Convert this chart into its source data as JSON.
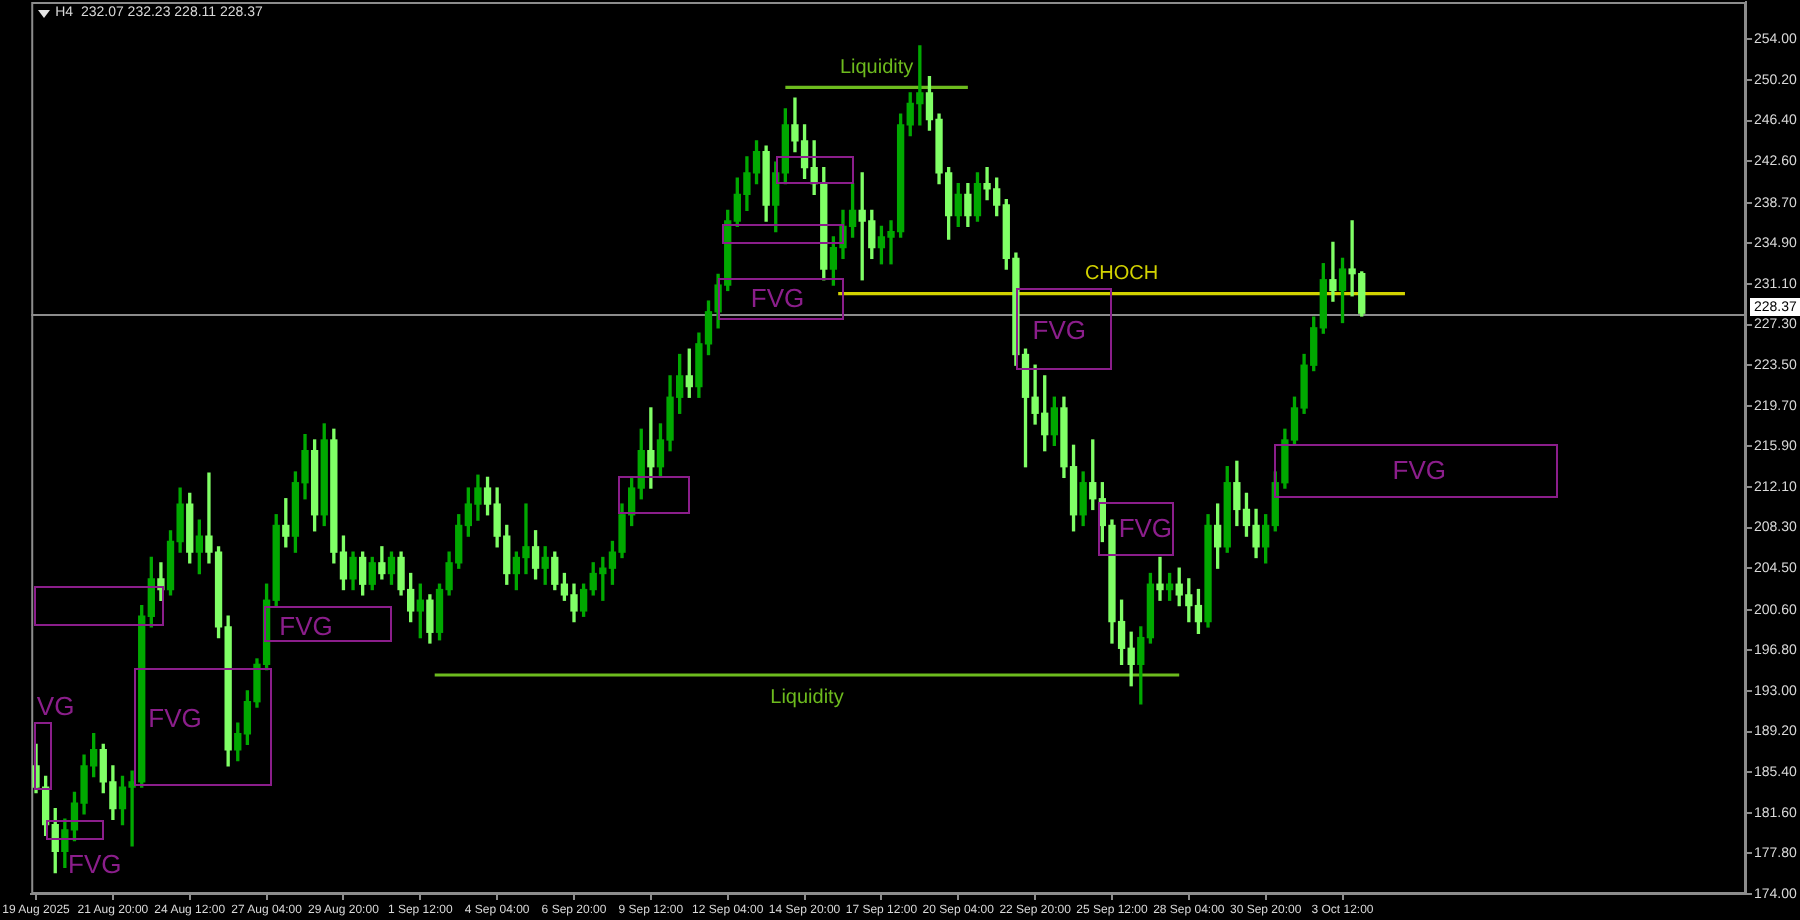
{
  "chart_data": {
    "type": "candlestick",
    "title": "H4  232.07 232.23 228.11 228.37",
    "x": [
      "2025-08-19T04:00",
      "2025-08-19T12:00",
      "2025-08-19T20:00",
      "2025-08-20T04:00",
      "2025-08-20T12:00",
      "2025-08-20T20:00",
      "2025-08-21T04:00",
      "2025-08-21T12:00",
      "2025-08-21T20:00",
      "2025-08-22T04:00",
      "2025-08-22T12:00",
      "2025-08-22T20:00",
      "2025-08-23T04:00",
      "2025-08-23T12:00",
      "2025-08-23T20:00",
      "2025-08-24T04:00",
      "2025-08-24T12:00",
      "2025-08-24T20:00",
      "2025-08-25T04:00",
      "2025-08-25T12:00",
      "2025-08-25T20:00",
      "2025-08-26T04:00",
      "2025-08-26T12:00",
      "2025-08-26T20:00",
      "2025-08-27T04:00",
      "2025-08-27T12:00",
      "2025-08-27T20:00",
      "2025-08-28T04:00",
      "2025-08-28T12:00",
      "2025-08-28T20:00",
      "2025-08-29T04:00",
      "2025-08-29T12:00",
      "2025-08-29T20:00",
      "2025-08-30T04:00",
      "2025-08-30T12:00",
      "2025-08-30T20:00",
      "2025-08-31T04:00",
      "2025-08-31T12:00",
      "2025-08-31T20:00",
      "2025-09-01T04:00",
      "2025-09-01T12:00",
      "2025-09-01T20:00",
      "2025-09-02T04:00",
      "2025-09-02T12:00",
      "2025-09-02T20:00",
      "2025-09-03T04:00",
      "2025-09-03T12:00",
      "2025-09-03T20:00",
      "2025-09-04T04:00",
      "2025-09-04T12:00",
      "2025-09-04T20:00",
      "2025-09-05T04:00",
      "2025-09-05T12:00",
      "2025-09-05T20:00",
      "2025-09-06T04:00",
      "2025-09-06T12:00",
      "2025-09-06T20:00",
      "2025-09-07T04:00",
      "2025-09-07T12:00",
      "2025-09-07T20:00",
      "2025-09-08T04:00",
      "2025-09-08T12:00",
      "2025-09-08T20:00",
      "2025-09-09T04:00",
      "2025-09-09T12:00",
      "2025-09-09T20:00",
      "2025-09-10T04:00",
      "2025-09-10T12:00",
      "2025-09-10T20:00",
      "2025-09-11T04:00",
      "2025-09-11T12:00",
      "2025-09-11T20:00",
      "2025-09-12T04:00",
      "2025-09-12T12:00",
      "2025-09-12T20:00",
      "2025-09-13T04:00",
      "2025-09-13T12:00",
      "2025-09-13T20:00",
      "2025-09-14T04:00",
      "2025-09-14T12:00",
      "2025-09-14T20:00",
      "2025-09-15T04:00",
      "2025-09-15T12:00",
      "2025-09-15T20:00",
      "2025-09-16T04:00",
      "2025-09-16T12:00",
      "2025-09-16T20:00",
      "2025-09-17T04:00",
      "2025-09-17T12:00",
      "2025-09-17T20:00",
      "2025-09-18T04:00",
      "2025-09-18T12:00",
      "2025-09-18T20:00",
      "2025-09-19T04:00",
      "2025-09-19T12:00",
      "2025-09-19T20:00",
      "2025-09-20T04:00",
      "2025-09-20T12:00",
      "2025-09-20T20:00",
      "2025-09-21T04:00",
      "2025-09-21T12:00",
      "2025-09-21T20:00",
      "2025-09-22T04:00",
      "2025-09-22T12:00",
      "2025-09-22T20:00",
      "2025-09-23T04:00",
      "2025-09-23T12:00",
      "2025-09-23T20:00",
      "2025-09-24T04:00",
      "2025-09-24T12:00",
      "2025-09-24T20:00",
      "2025-09-25T04:00",
      "2025-09-25T12:00",
      "2025-09-25T20:00",
      "2025-09-26T04:00",
      "2025-09-26T12:00",
      "2025-09-26T20:00",
      "2025-09-27T04:00",
      "2025-09-27T12:00",
      "2025-09-27T20:00",
      "2025-09-28T04:00",
      "2025-09-28T12:00",
      "2025-09-28T20:00",
      "2025-09-29T04:00",
      "2025-09-29T12:00",
      "2025-09-29T20:00",
      "2025-09-30T04:00",
      "2025-09-30T12:00",
      "2025-09-30T20:00",
      "2025-10-01T04:00",
      "2025-10-01T12:00",
      "2025-10-01T20:00",
      "2025-10-02T04:00",
      "2025-10-02T12:00",
      "2025-10-02T20:00",
      "2025-10-03T04:00",
      "2025-10-03T12:00",
      "2025-10-03T20:00",
      "2025-10-04T04:00"
    ],
    "ohlc": [
      [
        186,
        188,
        183.5,
        184
      ],
      [
        184,
        185,
        179.5,
        180.5
      ],
      [
        180.5,
        182,
        176,
        178
      ],
      [
        178,
        181,
        176.5,
        180
      ],
      [
        180,
        183.5,
        179,
        182.5
      ],
      [
        182.5,
        187,
        181.5,
        186
      ],
      [
        186,
        189,
        185,
        187.5
      ],
      [
        187.5,
        188,
        183.5,
        184.5
      ],
      [
        184.5,
        186,
        181,
        182
      ],
      [
        182,
        185,
        180.5,
        184
      ],
      [
        184,
        185.5,
        178.5,
        184.5
      ],
      [
        184.5,
        201,
        184,
        200
      ],
      [
        200,
        205.5,
        199,
        203.5
      ],
      [
        203.5,
        205,
        201.5,
        202.5
      ],
      [
        202.5,
        208,
        202,
        207
      ],
      [
        207,
        212,
        206,
        210.5
      ],
      [
        210.5,
        211.5,
        205,
        206
      ],
      [
        206,
        209,
        204,
        207.5
      ],
      [
        207.5,
        213.4,
        205,
        206
      ],
      [
        206,
        206.5,
        198,
        199
      ],
      [
        199,
        200,
        186,
        187.5
      ],
      [
        187.5,
        190,
        186.5,
        189
      ],
      [
        189,
        193,
        188,
        192
      ],
      [
        192,
        196,
        191.5,
        195.5
      ],
      [
        195.5,
        203,
        195,
        201.5
      ],
      [
        201.5,
        209.5,
        201,
        208.5
      ],
      [
        208.5,
        211,
        206.5,
        207.5
      ],
      [
        207.5,
        213.5,
        206,
        212.5
      ],
      [
        212.5,
        217,
        211,
        215.5
      ],
      [
        215.5,
        216.5,
        208,
        209.5
      ],
      [
        209.5,
        218,
        208.5,
        216.5
      ],
      [
        216.5,
        217.5,
        205,
        206
      ],
      [
        206,
        207.5,
        202.5,
        203.5
      ],
      [
        203.5,
        206,
        202.5,
        205.5
      ],
      [
        205.5,
        206,
        202,
        203
      ],
      [
        203,
        205.5,
        202.5,
        205
      ],
      [
        205,
        206.5,
        203.5,
        204
      ],
      [
        204,
        206,
        203,
        205.5
      ],
      [
        205.5,
        206,
        202,
        202.5
      ],
      [
        202.5,
        204,
        199.5,
        200.5
      ],
      [
        200.5,
        203,
        198,
        201.5
      ],
      [
        201.5,
        202,
        197.5,
        198.5
      ],
      [
        198.5,
        203,
        197.8,
        202.5
      ],
      [
        202.5,
        206,
        202,
        205
      ],
      [
        205,
        209.5,
        204.5,
        208.5
      ],
      [
        208.5,
        212,
        207.5,
        210.5
      ],
      [
        210.5,
        213.2,
        209,
        212
      ],
      [
        212,
        213,
        209.5,
        210.5
      ],
      [
        210.5,
        212,
        206.5,
        207.5
      ],
      [
        207.5,
        208.5,
        203,
        204
      ],
      [
        204,
        206,
        202.5,
        205.5
      ],
      [
        205.5,
        210.5,
        204,
        206.5
      ],
      [
        206.5,
        208,
        203.5,
        204.5
      ],
      [
        204.5,
        206.5,
        203,
        205.5
      ],
      [
        205.5,
        206,
        202.5,
        203
      ],
      [
        203,
        204,
        201.5,
        202
      ],
      [
        202,
        203,
        199.5,
        200.5
      ],
      [
        200.5,
        203,
        200,
        202.5
      ],
      [
        202.5,
        205,
        202,
        204
      ],
      [
        204,
        205.5,
        201.5,
        204.5
      ],
      [
        204.5,
        207,
        203,
        206
      ],
      [
        206,
        210.5,
        205.5,
        209.5
      ],
      [
        209.5,
        213,
        208.5,
        212
      ],
      [
        212,
        217.5,
        211,
        215.5
      ],
      [
        215.5,
        219.5,
        212,
        214
      ],
      [
        214,
        218,
        213,
        216.5
      ],
      [
        216.5,
        222.5,
        215.5,
        220.5
      ],
      [
        220.5,
        224.5,
        219,
        222.5
      ],
      [
        222.5,
        225,
        220.5,
        221.5
      ],
      [
        221.5,
        226.5,
        220.5,
        225.5
      ],
      [
        225.5,
        229.5,
        224.5,
        228.5
      ],
      [
        228.5,
        232,
        227,
        231
      ],
      [
        231,
        238,
        230.5,
        237
      ],
      [
        237,
        241,
        236.5,
        239.5
      ],
      [
        239.5,
        243,
        238,
        241.5
      ],
      [
        241.5,
        244.5,
        240.5,
        243.5
      ],
      [
        243.5,
        244,
        237,
        238.5
      ],
      [
        238.5,
        242.5,
        236,
        241.5
      ],
      [
        241.5,
        247.5,
        240.5,
        246
      ],
      [
        246,
        248.5,
        243.5,
        244.5
      ],
      [
        244.5,
        246,
        241,
        242
      ],
      [
        242,
        244.5,
        239.5,
        240.5
      ],
      [
        240.5,
        242,
        231.5,
        232.5
      ],
      [
        232.5,
        235.5,
        231,
        234.5
      ],
      [
        234.5,
        238,
        233.5,
        236.5
      ],
      [
        236.5,
        240.5,
        235.5,
        238
      ],
      [
        238,
        241.5,
        231.5,
        237
      ],
      [
        237,
        238,
        233.5,
        234.5
      ],
      [
        234.5,
        236.5,
        233,
        235.5
      ],
      [
        235.5,
        237,
        233,
        236
      ],
      [
        236,
        247,
        235.5,
        246
      ],
      [
        246,
        249,
        245,
        248
      ],
      [
        248,
        253.4,
        246,
        249
      ],
      [
        249,
        250.5,
        245.5,
        246.5
      ],
      [
        246.5,
        247,
        240.5,
        241.5
      ],
      [
        241.5,
        242,
        235.3,
        237.5
      ],
      [
        237.5,
        240.5,
        236.5,
        239.5
      ],
      [
        239.5,
        240.5,
        236.5,
        237.5
      ],
      [
        237.5,
        241.5,
        237,
        240.5
      ],
      [
        240.5,
        242,
        239,
        240
      ],
      [
        240,
        241,
        237.5,
        238.5
      ],
      [
        238.5,
        239,
        232.5,
        233.5
      ],
      [
        233.5,
        234,
        223.5,
        224.5
      ],
      [
        224.5,
        225,
        214,
        220.5
      ],
      [
        220.5,
        223.5,
        218,
        219
      ],
      [
        219,
        222.5,
        215.5,
        217
      ],
      [
        217,
        220.5,
        216,
        219.5
      ],
      [
        219.5,
        220.5,
        213,
        214
      ],
      [
        214,
        216,
        208,
        209.5
      ],
      [
        209.5,
        213.5,
        208.5,
        212.5
      ],
      [
        212.5,
        216.5,
        210,
        211
      ],
      [
        211,
        212.5,
        207,
        208.5
      ],
      [
        208.5,
        209,
        197.5,
        199.5
      ],
      [
        199.5,
        201.5,
        195.5,
        197
      ],
      [
        197,
        198.5,
        193.5,
        195.5
      ],
      [
        195.5,
        199,
        191.8,
        198
      ],
      [
        198,
        204,
        197.5,
        203
      ],
      [
        203,
        205.5,
        201.5,
        202.5
      ],
      [
        202.5,
        204,
        201.5,
        203
      ],
      [
        203,
        204.5,
        201,
        202
      ],
      [
        202,
        203.5,
        199.5,
        201
      ],
      [
        201,
        202.5,
        198.4,
        199.5
      ],
      [
        199.5,
        209.5,
        199,
        208.5
      ],
      [
        208.5,
        210.5,
        204.5,
        206.5
      ],
      [
        206.5,
        214,
        206,
        212.5
      ],
      [
        212.5,
        214.5,
        208.5,
        210
      ],
      [
        210,
        211.5,
        207.5,
        208.5
      ],
      [
        208.5,
        210,
        205.5,
        206.5
      ],
      [
        206.5,
        209.5,
        205,
        208.5
      ],
      [
        208.5,
        213.5,
        208,
        212.5
      ],
      [
        212.5,
        217.5,
        212,
        216.5
      ],
      [
        216.5,
        220.5,
        216,
        219.5
      ],
      [
        219.5,
        224.5,
        219,
        223.5
      ],
      [
        223.5,
        228,
        223,
        227
      ],
      [
        227,
        233,
        226.5,
        231.5
      ],
      [
        231.5,
        235,
        229.5,
        230.5
      ],
      [
        230.5,
        233.5,
        227.5,
        232.5
      ],
      [
        232.5,
        237,
        230,
        232.07
      ],
      [
        232.07,
        232.23,
        228.11,
        228.37
      ]
    ],
    "colors": [
      "#80ff66",
      "#80ff66",
      "#80ff66",
      "#00a800",
      "#00a800",
      "#00a800",
      "#00a800",
      "#80ff66",
      "#80ff66",
      "#00a800",
      "#00a800",
      "#00a800",
      "#00a800",
      "#80ff66",
      "#00a800",
      "#00a800",
      "#80ff66",
      "#00a800",
      "#80ff66",
      "#80ff66",
      "#80ff66",
      "#00a800",
      "#00a800",
      "#00a800",
      "#00a800",
      "#00a800",
      "#80ff66",
      "#00a800",
      "#00a800",
      "#80ff66",
      "#00a800",
      "#80ff66",
      "#80ff66",
      "#00a800",
      "#80ff66",
      "#00a800",
      "#80ff66",
      "#00a800",
      "#80ff66",
      "#80ff66",
      "#00a800",
      "#80ff66",
      "#00a800",
      "#00a800",
      "#00a800",
      "#00a800",
      "#00a800",
      "#80ff66",
      "#80ff66",
      "#80ff66",
      "#00a800",
      "#00a800",
      "#80ff66",
      "#00a800",
      "#80ff66",
      "#80ff66",
      "#80ff66",
      "#00a800",
      "#00a800",
      "#00a800",
      "#00a800",
      "#00a800",
      "#00a800",
      "#00a800",
      "#80ff66",
      "#00a800",
      "#00a800",
      "#00a800",
      "#80ff66",
      "#00a800",
      "#00a800",
      "#00a800",
      "#00a800",
      "#00a800",
      "#00a800",
      "#00a800",
      "#80ff66",
      "#00a800",
      "#00a800",
      "#80ff66",
      "#80ff66",
      "#80ff66",
      "#80ff66",
      "#00a800",
      "#00a800",
      "#00a800",
      "#80ff66",
      "#80ff66",
      "#00a800",
      "#00a800",
      "#00a800",
      "#00a800",
      "#00a800",
      "#80ff66",
      "#80ff66",
      "#80ff66",
      "#00a800",
      "#80ff66",
      "#00a800",
      "#80ff66",
      "#80ff66",
      "#80ff66",
      "#80ff66",
      "#80ff66",
      "#80ff66",
      "#80ff66",
      "#00a800",
      "#80ff66",
      "#80ff66",
      "#00a800",
      "#80ff66",
      "#80ff66",
      "#80ff66",
      "#80ff66",
      "#80ff66",
      "#00a800",
      "#00a800",
      "#80ff66",
      "#00a800",
      "#80ff66",
      "#80ff66",
      "#80ff66",
      "#00a800",
      "#80ff66",
      "#00a800",
      "#80ff66",
      "#80ff66",
      "#80ff66",
      "#00a800",
      "#00a800",
      "#00a800",
      "#00a800",
      "#00a800",
      "#00a800",
      "#00a800",
      "#80ff66",
      "#00a800",
      "#80ff66",
      "#80ff66"
    ],
    "series": [
      {
        "type": "line",
        "name": "Liquidity",
        "color": "#6dbb1e",
        "x": [
          "2025-09-14T04:00",
          "2025-09-20T12:00"
        ],
        "values": [
          249.5,
          249.5
        ]
      },
      {
        "type": "line",
        "name": "Liquidity",
        "color": "#6dbb1e",
        "x": [
          "2025-09-02T00:00",
          "2025-09-27T20:00"
        ],
        "values": [
          194.5,
          194.5
        ]
      },
      {
        "type": "line",
        "name": "CHOCH",
        "color": "#d2d200",
        "x": [
          "2025-09-16T00:00",
          "2025-10-05T16:00"
        ],
        "values": [
          230.2,
          230.2
        ]
      }
    ],
    "annotations": [
      "VG",
      "FVG",
      "FVG",
      "FVG",
      "FVG",
      "FVG",
      "FVG",
      "FVG"
    ],
    "ref_lines": [
      {
        "axis": "y",
        "value": 228.37,
        "label": "228.37",
        "color": "#8c8c8c"
      }
    ],
    "xlim": [
      "2025-08-19T00:00",
      "2025-10-17T12:00"
    ],
    "xticks": [
      {
        "value": "2025-08-19T04:00",
        "label": "19 Aug 2025"
      },
      {
        "value": "2025-08-21T20:00",
        "label": "21 Aug 20:00"
      },
      {
        "value": "2025-08-24T12:00",
        "label": "24 Aug 12:00"
      },
      {
        "value": "2025-08-27T04:00",
        "label": "27 Aug 04:00"
      },
      {
        "value": "2025-08-29T20:00",
        "label": "29 Aug 20:00"
      },
      {
        "value": "2025-09-01T12:00",
        "label": "1 Sep 12:00"
      },
      {
        "value": "2025-09-04T04:00",
        "label": "4 Sep 04:00"
      },
      {
        "value": "2025-09-06T20:00",
        "label": "6 Sep 20:00"
      },
      {
        "value": "2025-09-09T12:00",
        "label": "9 Sep 12:00"
      },
      {
        "value": "2025-09-12T04:00",
        "label": "12 Sep 04:00"
      },
      {
        "value": "2025-09-14T20:00",
        "label": "14 Sep 20:00"
      },
      {
        "value": "2025-09-17T12:00",
        "label": "17 Sep 12:00"
      },
      {
        "value": "2025-09-20T04:00",
        "label": "20 Sep 04:00"
      },
      {
        "value": "2025-09-22T20:00",
        "label": "22 Sep 20:00"
      },
      {
        "value": "2025-09-25T12:00",
        "label": "25 Sep 12:00"
      },
      {
        "value": "2025-09-28T04:00",
        "label": "28 Sep 04:00"
      },
      {
        "value": "2025-09-30T20:00",
        "label": "30 Sep 20:00"
      },
      {
        "value": "2025-10-03T12:00",
        "label": "3 Oct 12:00"
      }
    ],
    "ylim": [
      174,
      257.5
    ],
    "yticks": [
      {
        "value": 254,
        "label": "254.00"
      },
      {
        "value": 250.2,
        "label": "250.20"
      },
      {
        "value": 246.4,
        "label": "246.40"
      },
      {
        "value": 242.6,
        "label": "242.60"
      },
      {
        "value": 238.7,
        "label": "238.70"
      },
      {
        "value": 234.9,
        "label": "234.90"
      },
      {
        "value": 231.1,
        "label": "231.10"
      },
      {
        "value": 227.3,
        "label": "227.30"
      },
      {
        "value": 223.5,
        "label": "223.50"
      },
      {
        "value": 219.7,
        "label": "219.70"
      },
      {
        "value": 215.9,
        "label": "215.90"
      },
      {
        "value": 212.1,
        "label": "212.10"
      },
      {
        "value": 208.3,
        "label": "208.30"
      },
      {
        "value": 204.5,
        "label": "204.50"
      },
      {
        "value": 200.6,
        "label": "200.60"
      },
      {
        "value": 196.8,
        "label": "196.80"
      },
      {
        "value": 193,
        "label": "193.00"
      },
      {
        "value": 189.2,
        "label": "189.20"
      },
      {
        "value": 185.4,
        "label": "185.40"
      },
      {
        "value": 181.6,
        "label": "181.60"
      },
      {
        "value": 177.8,
        "label": "177.80"
      },
      {
        "value": 174,
        "label": "174.00"
      }
    ]
  }
}
